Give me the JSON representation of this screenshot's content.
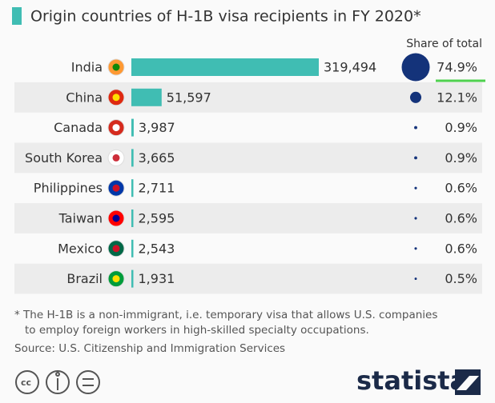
{
  "chart_data": {
    "type": "bar",
    "title": "Origin countries of H-1B visa recipients in FY 2020*",
    "categories": [
      "India",
      "China",
      "Canada",
      "South Korea",
      "Philippines",
      "Taiwan",
      "Mexico",
      "Brazil"
    ],
    "values": [
      319494,
      51597,
      3987,
      3665,
      2711,
      2595,
      2543,
      1931
    ],
    "value_labels": [
      "319,494",
      "51,597",
      "3,987",
      "3,665",
      "2,711",
      "2,595",
      "2,543",
      "1,931"
    ],
    "color": "#40bdb3",
    "share": {
      "title": "Share of total",
      "values": [
        74.9,
        12.1,
        0.9,
        0.9,
        0.6,
        0.6,
        0.6,
        0.5
      ],
      "value_labels": [
        "74.9%",
        "12.1%",
        "0.9%",
        "0.9%",
        "0.6%",
        "0.6%",
        "0.6%",
        "0.5%"
      ],
      "color": "#14337a"
    },
    "footnote": [
      "* The H-1B is a non-immigrant, i.e. temporary visa that allows U.S. companies",
      "to employ foreign workers in high-skilled specialty occupations."
    ],
    "source": "Source: U.S. Citizenship and Immigration Services",
    "brand": "statista"
  }
}
